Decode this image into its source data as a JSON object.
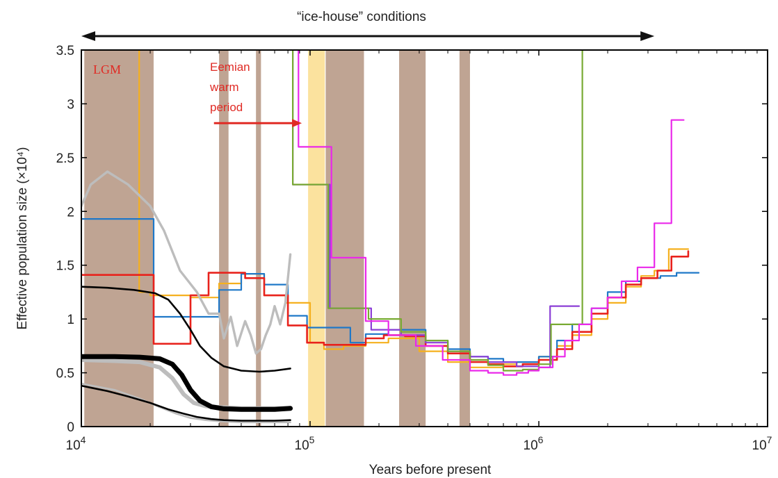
{
  "chart_data": {
    "type": "line",
    "x_scale": "log",
    "xlim": [
      10000,
      10000000
    ],
    "ylim": [
      0,
      3.5
    ],
    "xlabel": "Years before present",
    "ylabel": "Effective population size (×10⁴)",
    "x_ticks": [
      {
        "value": 10000,
        "base": "10",
        "exp": "4"
      },
      {
        "value": 100000,
        "base": "10",
        "exp": "5"
      },
      {
        "value": 1000000,
        "base": "10",
        "exp": "6"
      },
      {
        "value": 10000000,
        "base": "10",
        "exp": "7"
      }
    ],
    "y_ticks": [
      {
        "value": 0,
        "label": "0"
      },
      {
        "value": 0.5,
        "label": "0.5"
      },
      {
        "value": 1,
        "label": "1"
      },
      {
        "value": 1.5,
        "label": "1.5"
      },
      {
        "value": 2,
        "label": "2"
      },
      {
        "value": 2.5,
        "label": "2.5"
      },
      {
        "value": 3,
        "label": "3"
      },
      {
        "value": 3.5,
        "label": "3.5"
      }
    ],
    "grid": false,
    "glacial_bands": [
      {
        "x0": 10300,
        "x1": 20700,
        "color": "#bfa493"
      },
      {
        "x0": 40000,
        "x1": 44000,
        "color": "#bfa493"
      },
      {
        "x0": 58000,
        "x1": 61000,
        "color": "#bfa493"
      },
      {
        "x0": 117000,
        "x1": 172000,
        "color": "#bfa493"
      },
      {
        "x0": 245000,
        "x1": 320000,
        "color": "#bfa493"
      },
      {
        "x0": 450000,
        "x1": 500000,
        "color": "#bfa493"
      }
    ],
    "interglacial_bands": [
      {
        "x0": 98000,
        "x1": 116000,
        "color": "#fbe29e"
      }
    ],
    "series": [
      {
        "color": "#f5b01e",
        "width": 2.2,
        "step": true,
        "x": [
          17900,
          17900,
          20000,
          30000,
          40000,
          50000,
          63000,
          78000,
          100000,
          115000,
          140000,
          175000,
          220000,
          300000,
          400000,
          500000,
          600000,
          700000,
          800000,
          1000000,
          1200000,
          1400000,
          1700000,
          2000000,
          2400000,
          2800000,
          3200000,
          3700000,
          4500000
        ],
        "y": [
          3.5,
          1.25,
          1.22,
          1.2,
          1.33,
          1.42,
          1.22,
          1.15,
          0.78,
          0.72,
          0.75,
          0.78,
          0.82,
          0.7,
          0.6,
          0.55,
          0.55,
          0.58,
          0.6,
          0.65,
          0.75,
          0.85,
          1.0,
          1.15,
          1.3,
          1.4,
          1.45,
          1.65,
          1.65
        ]
      },
      {
        "color": "#1f78c8",
        "width": 2.2,
        "step": true,
        "x": [
          10000,
          20700,
          30000,
          40000,
          50000,
          63000,
          80000,
          97000,
          120000,
          150000,
          175000,
          220000,
          260000,
          320000,
          400000,
          500000,
          600000,
          700000,
          800000,
          1000000,
          1200000,
          1400000,
          1700000,
          2000000,
          2400000,
          2800000,
          3400000,
          4000000,
          5000000
        ],
        "y": [
          1.93,
          1.02,
          1.02,
          1.27,
          1.42,
          1.32,
          1.03,
          0.92,
          0.92,
          0.78,
          0.86,
          0.9,
          0.9,
          0.8,
          0.72,
          0.65,
          0.63,
          0.6,
          0.6,
          0.65,
          0.8,
          0.95,
          1.1,
          1.25,
          1.35,
          1.38,
          1.4,
          1.43,
          1.43
        ]
      },
      {
        "color": "#e8221c",
        "width": 2.6,
        "step": true,
        "x": [
          10000,
          20700,
          30000,
          36000,
          52000,
          63000,
          80000,
          97000,
          115000,
          145000,
          175000,
          210000,
          260000,
          320000,
          400000,
          500000,
          600000,
          700000,
          850000,
          1000000,
          1200000,
          1400000,
          1700000,
          2000000,
          2400000,
          2800000,
          3300000,
          3800000,
          4500000
        ],
        "y": [
          1.41,
          0.77,
          1.22,
          1.43,
          1.38,
          1.22,
          0.94,
          0.78,
          0.76,
          0.76,
          0.82,
          0.85,
          0.84,
          0.75,
          0.68,
          0.6,
          0.58,
          0.56,
          0.58,
          0.62,
          0.72,
          0.88,
          1.05,
          1.2,
          1.32,
          1.38,
          1.45,
          1.58,
          1.63
        ]
      },
      {
        "color": "#8b3fd6",
        "width": 2.2,
        "step": true,
        "x": [
          84000,
          84000,
          122000,
          185000,
          250000,
          320000,
          400000,
          500000,
          600000,
          800000,
          1000000,
          1120000,
          1500000
        ],
        "y": [
          3.5,
          2.25,
          1.1,
          0.9,
          0.85,
          0.78,
          0.7,
          0.65,
          0.6,
          0.56,
          0.55,
          1.12,
          1.12
        ]
      },
      {
        "color": "#78aa32",
        "width": 2.2,
        "step": true,
        "x": [
          84000,
          84000,
          120000,
          180000,
          250000,
          320000,
          400000,
          500000,
          600000,
          700000,
          850000,
          1000000,
          1130000,
          1550000,
          1550000
        ],
        "y": [
          3.5,
          2.25,
          1.1,
          1.0,
          0.88,
          0.8,
          0.7,
          0.62,
          0.57,
          0.52,
          0.53,
          0.58,
          0.95,
          3.5,
          3.5
        ]
      },
      {
        "color": "#ea28ea",
        "width": 2.2,
        "step": true,
        "x": [
          89000,
          89000,
          102000,
          124000,
          175000,
          220000,
          290000,
          380000,
          500000,
          600000,
          700000,
          800000,
          900000,
          1000000,
          1150000,
          1300000,
          1500000,
          1700000,
          2000000,
          2300000,
          2700000,
          3200000,
          3800000,
          4300000
        ],
        "y": [
          3.5,
          2.6,
          2.6,
          1.57,
          0.98,
          0.85,
          0.75,
          0.62,
          0.52,
          0.5,
          0.48,
          0.5,
          0.52,
          0.55,
          0.65,
          0.8,
          0.95,
          1.1,
          1.2,
          1.35,
          1.48,
          1.89,
          2.85,
          2.85
        ]
      },
      {
        "color": "#bdbdbd",
        "width": 3.4,
        "step": false,
        "x": [
          10000,
          11000,
          13000,
          16000,
          20000,
          23000,
          27000,
          32000,
          36000,
          40000,
          42000,
          45000,
          48000,
          52000,
          55000,
          58000,
          61000,
          64000,
          67000,
          70000,
          74000,
          78000,
          82000
        ],
        "y": [
          2.05,
          2.25,
          2.37,
          2.25,
          2.05,
          1.82,
          1.45,
          1.25,
          1.05,
          1.05,
          0.82,
          1.02,
          0.75,
          0.98,
          0.85,
          0.68,
          0.72,
          0.85,
          0.95,
          1.12,
          0.95,
          1.15,
          1.6
        ]
      },
      {
        "color": "#bdbdbd",
        "width": 6,
        "step": false,
        "x": [
          10000,
          14000,
          18000,
          22000,
          25000,
          28000,
          31000,
          35000,
          40000,
          50000,
          60000,
          70000,
          82000
        ],
        "y": [
          0.62,
          0.61,
          0.6,
          0.55,
          0.45,
          0.3,
          0.22,
          0.19,
          0.18,
          0.17,
          0.17,
          0.17,
          0.17
        ]
      },
      {
        "color": "#bdbdbd",
        "width": 2.6,
        "step": false,
        "x": [
          10000,
          14000,
          18000,
          22000,
          26000,
          30000,
          35000,
          40000,
          50000,
          60000,
          70000,
          82000
        ],
        "y": [
          0.4,
          0.34,
          0.26,
          0.18,
          0.12,
          0.08,
          0.06,
          0.05,
          0.04,
          0.04,
          0.04,
          0.04
        ]
      },
      {
        "color": "#000000",
        "width": 2.6,
        "step": false,
        "x": [
          10000,
          13000,
          17000,
          21000,
          24000,
          27000,
          30000,
          33000,
          37000,
          42000,
          50000,
          60000,
          70000,
          82000
        ],
        "y": [
          1.3,
          1.29,
          1.27,
          1.24,
          1.18,
          1.05,
          0.9,
          0.75,
          0.64,
          0.56,
          0.52,
          0.51,
          0.52,
          0.54
        ]
      },
      {
        "color": "#000000",
        "width": 7,
        "step": false,
        "x": [
          10000,
          14000,
          18000,
          22000,
          25000,
          27500,
          30000,
          33000,
          37000,
          42000,
          50000,
          60000,
          70000,
          82000
        ],
        "y": [
          0.65,
          0.65,
          0.645,
          0.63,
          0.58,
          0.48,
          0.34,
          0.24,
          0.185,
          0.165,
          0.16,
          0.16,
          0.16,
          0.17
        ]
      },
      {
        "color": "#000000",
        "width": 2.6,
        "step": false,
        "x": [
          10000,
          13000,
          16000,
          20000,
          24000,
          28000,
          32000,
          37000,
          42000,
          50000,
          60000,
          70000,
          82000
        ],
        "y": [
          0.38,
          0.33,
          0.28,
          0.22,
          0.16,
          0.12,
          0.09,
          0.07,
          0.06,
          0.055,
          0.055,
          0.055,
          0.06
        ]
      }
    ],
    "annotations": {
      "top_label": "“ice-house” conditions",
      "top_arrow": {
        "x0": 10000,
        "x1": 3200000
      },
      "lgm": "LGM",
      "eemian": [
        "Eemian",
        "warm",
        "period"
      ],
      "eemian_arrow": {
        "x0": 38000,
        "x1": 92000,
        "y": 2.82
      },
      "red": "#e02a24",
      "arrow_color": "#111111"
    }
  }
}
